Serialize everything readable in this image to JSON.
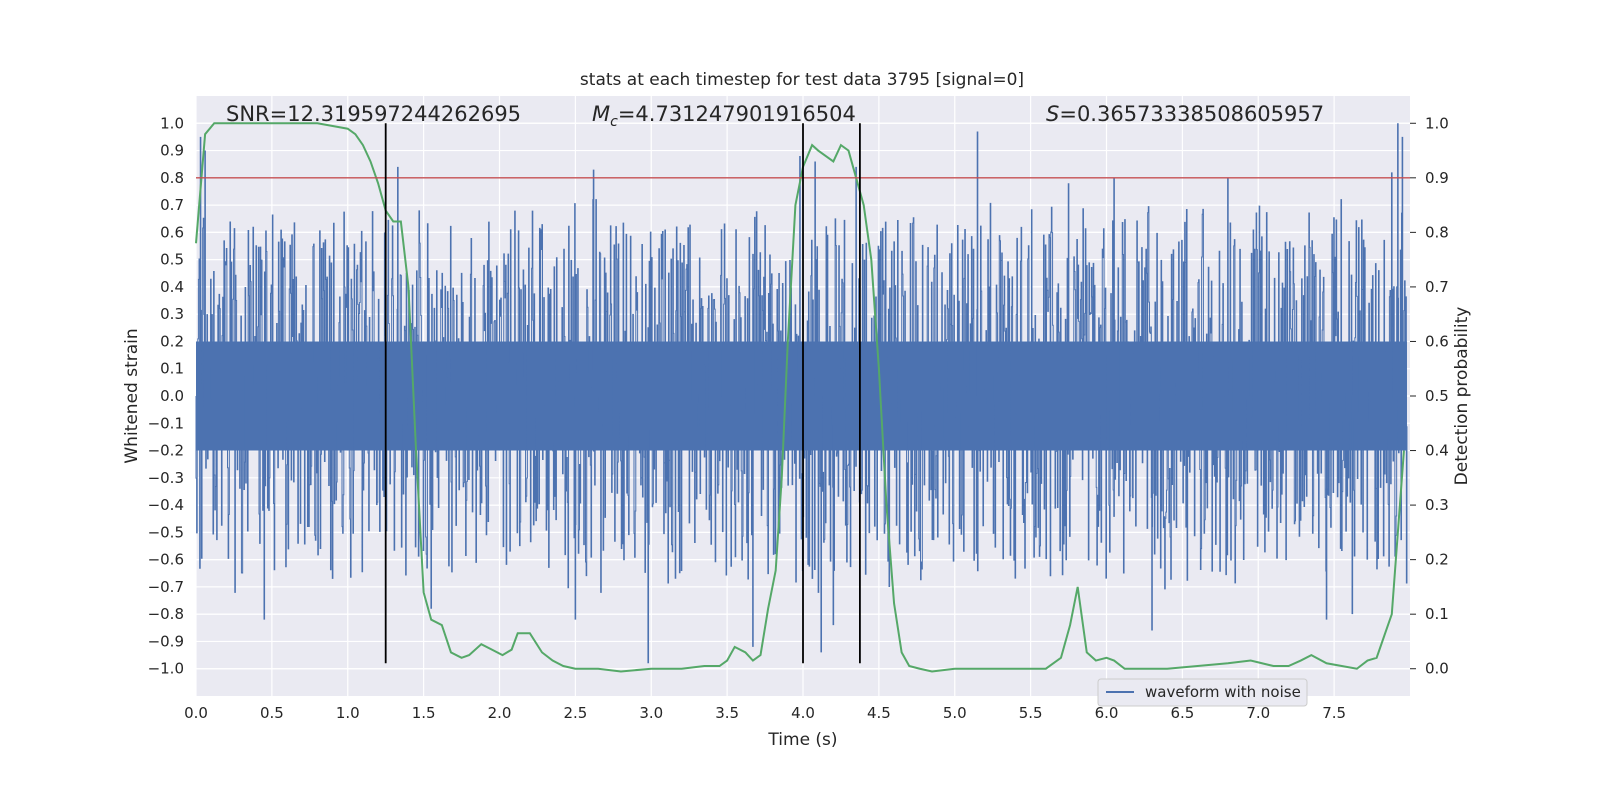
{
  "chart_data": {
    "type": "line",
    "title": "stats at each timestep for test data 3795 [signal=0]",
    "xlabel": "Time (s)",
    "ylabel": "Whitened strain",
    "y2label": "Detection probability",
    "xlim": [
      0.0,
      8.0
    ],
    "ylim": [
      -1.1,
      1.1
    ],
    "y2lim": [
      -0.05,
      1.05
    ],
    "xticks": [
      0.0,
      0.5,
      1.0,
      1.5,
      2.0,
      2.5,
      3.0,
      3.5,
      4.0,
      4.5,
      5.0,
      5.5,
      6.0,
      6.5,
      7.0,
      7.5
    ],
    "xtick_labels": [
      "0.0",
      "0.5",
      "1.0",
      "1.5",
      "2.0",
      "2.5",
      "3.0",
      "3.5",
      "4.0",
      "4.5",
      "5.0",
      "5.5",
      "6.0",
      "6.5",
      "7.0",
      "7.5"
    ],
    "yticks": [
      -1.0,
      -0.9,
      -0.8,
      -0.7,
      -0.6,
      -0.5,
      -0.4,
      -0.3,
      -0.2,
      -0.1,
      0.0,
      0.1,
      0.2,
      0.3,
      0.4,
      0.5,
      0.6,
      0.7,
      0.8,
      0.9,
      1.0
    ],
    "ytick_labels": [
      "−1.0",
      "−0.9",
      "−0.8",
      "−0.7",
      "−0.6",
      "−0.5",
      "−0.4",
      "−0.3",
      "−0.2",
      "−0.1",
      "0.0",
      "0.1",
      "0.2",
      "0.3",
      "0.4",
      "0.5",
      "0.6",
      "0.7",
      "0.8",
      "0.9",
      "1.0"
    ],
    "y2ticks": [
      0.0,
      0.1,
      0.2,
      0.3,
      0.4,
      0.5,
      0.6,
      0.7,
      0.8,
      0.9,
      1.0
    ],
    "y2tick_labels": [
      "0.0",
      "0.1",
      "0.2",
      "0.3",
      "0.4",
      "0.5",
      "0.6",
      "0.7",
      "0.8",
      "0.9",
      "1.0"
    ],
    "annotations": {
      "snr": "SNR=12.319597244262695",
      "mc_symbol": "M",
      "mc_sub": "c",
      "mc_value": "=4.731247901916504",
      "s_symbol": "S",
      "s_value": "=0.36573338508605957"
    },
    "legend": {
      "label": "waveform with noise",
      "placement": "lower-right"
    },
    "threshold": {
      "y": 0.8,
      "color": "#c44e52"
    },
    "vlines": {
      "x": [
        1.25,
        4.0,
        4.375
      ],
      "ymin": -0.98,
      "ymax": 1.0,
      "color": "#000000"
    },
    "waveform": {
      "name": "waveform with noise",
      "color": "#4c72b0",
      "start": 0.0,
      "end": 7.98,
      "sample_count": 2000,
      "noise_core_half_width": 0.2,
      "envelope_typical": 0.5,
      "peaks": [
        {
          "x": 0.03,
          "y": 0.95
        },
        {
          "x": 0.06,
          "y": 0.9
        },
        {
          "x": 0.45,
          "y": -0.82
        },
        {
          "x": 1.33,
          "y": 0.84
        },
        {
          "x": 1.55,
          "y": -0.78
        },
        {
          "x": 2.5,
          "y": -0.82
        },
        {
          "x": 2.62,
          "y": 0.83
        },
        {
          "x": 2.98,
          "y": -0.98
        },
        {
          "x": 3.67,
          "y": -0.92
        },
        {
          "x": 3.98,
          "y": 0.88
        },
        {
          "x": 4.08,
          "y": 0.86
        },
        {
          "x": 4.12,
          "y": -0.94
        },
        {
          "x": 4.2,
          "y": -0.84
        },
        {
          "x": 4.35,
          "y": 0.84
        },
        {
          "x": 5.15,
          "y": 0.97
        },
        {
          "x": 5.75,
          "y": 0.78
        },
        {
          "x": 6.05,
          "y": 0.8
        },
        {
          "x": 6.3,
          "y": -0.86
        },
        {
          "x": 6.8,
          "y": 0.8
        },
        {
          "x": 7.45,
          "y": -0.82
        },
        {
          "x": 7.62,
          "y": -0.8
        },
        {
          "x": 7.88,
          "y": 0.82
        },
        {
          "x": 7.92,
          "y": 1.0
        },
        {
          "x": 7.95,
          "y": 0.95
        }
      ]
    },
    "probability": {
      "name": "detection probability",
      "color": "#55a868",
      "x": [
        0.0,
        0.06,
        0.12,
        0.3,
        0.5,
        0.7,
        0.8,
        1.0,
        1.05,
        1.1,
        1.15,
        1.2,
        1.25,
        1.3,
        1.35,
        1.4,
        1.45,
        1.5,
        1.55,
        1.62,
        1.68,
        1.75,
        1.8,
        1.88,
        1.95,
        2.02,
        2.08,
        2.12,
        2.2,
        2.28,
        2.35,
        2.42,
        2.5,
        2.65,
        2.8,
        3.0,
        3.2,
        3.35,
        3.45,
        3.5,
        3.55,
        3.62,
        3.67,
        3.72,
        3.77,
        3.82,
        3.86,
        3.9,
        3.95,
        4.0,
        4.03,
        4.06,
        4.1,
        4.2,
        4.25,
        4.3,
        4.35,
        4.4,
        4.45,
        4.5,
        4.55,
        4.6,
        4.65,
        4.7,
        4.77,
        4.85,
        5.0,
        5.2,
        5.4,
        5.6,
        5.7,
        5.76,
        5.81,
        5.87,
        5.93,
        6.0,
        6.05,
        6.12,
        6.2,
        6.4,
        6.6,
        6.8,
        6.95,
        7.1,
        7.2,
        7.28,
        7.35,
        7.45,
        7.55,
        7.65,
        7.72,
        7.78,
        7.83,
        7.88,
        7.92,
        7.96
      ],
      "y": [
        0.78,
        0.98,
        1.0,
        1.0,
        1.0,
        1.0,
        1.0,
        0.99,
        0.98,
        0.96,
        0.93,
        0.89,
        0.84,
        0.82,
        0.82,
        0.7,
        0.4,
        0.14,
        0.09,
        0.08,
        0.03,
        0.02,
        0.025,
        0.045,
        0.035,
        0.025,
        0.035,
        0.065,
        0.065,
        0.03,
        0.015,
        0.005,
        0.0,
        0.0,
        -0.005,
        0.0,
        0.0,
        0.005,
        0.005,
        0.015,
        0.04,
        0.03,
        0.015,
        0.025,
        0.11,
        0.18,
        0.35,
        0.6,
        0.85,
        0.92,
        0.94,
        0.96,
        0.95,
        0.93,
        0.96,
        0.95,
        0.9,
        0.85,
        0.75,
        0.55,
        0.3,
        0.12,
        0.03,
        0.005,
        0.0,
        -0.005,
        0.0,
        0.0,
        0.0,
        0.0,
        0.02,
        0.08,
        0.15,
        0.03,
        0.015,
        0.02,
        0.015,
        0.0,
        0.0,
        0.0,
        0.005,
        0.01,
        0.015,
        0.005,
        0.005,
        0.015,
        0.025,
        0.01,
        0.005,
        0.0,
        0.015,
        0.02,
        0.06,
        0.1,
        0.25,
        0.4
      ]
    }
  }
}
